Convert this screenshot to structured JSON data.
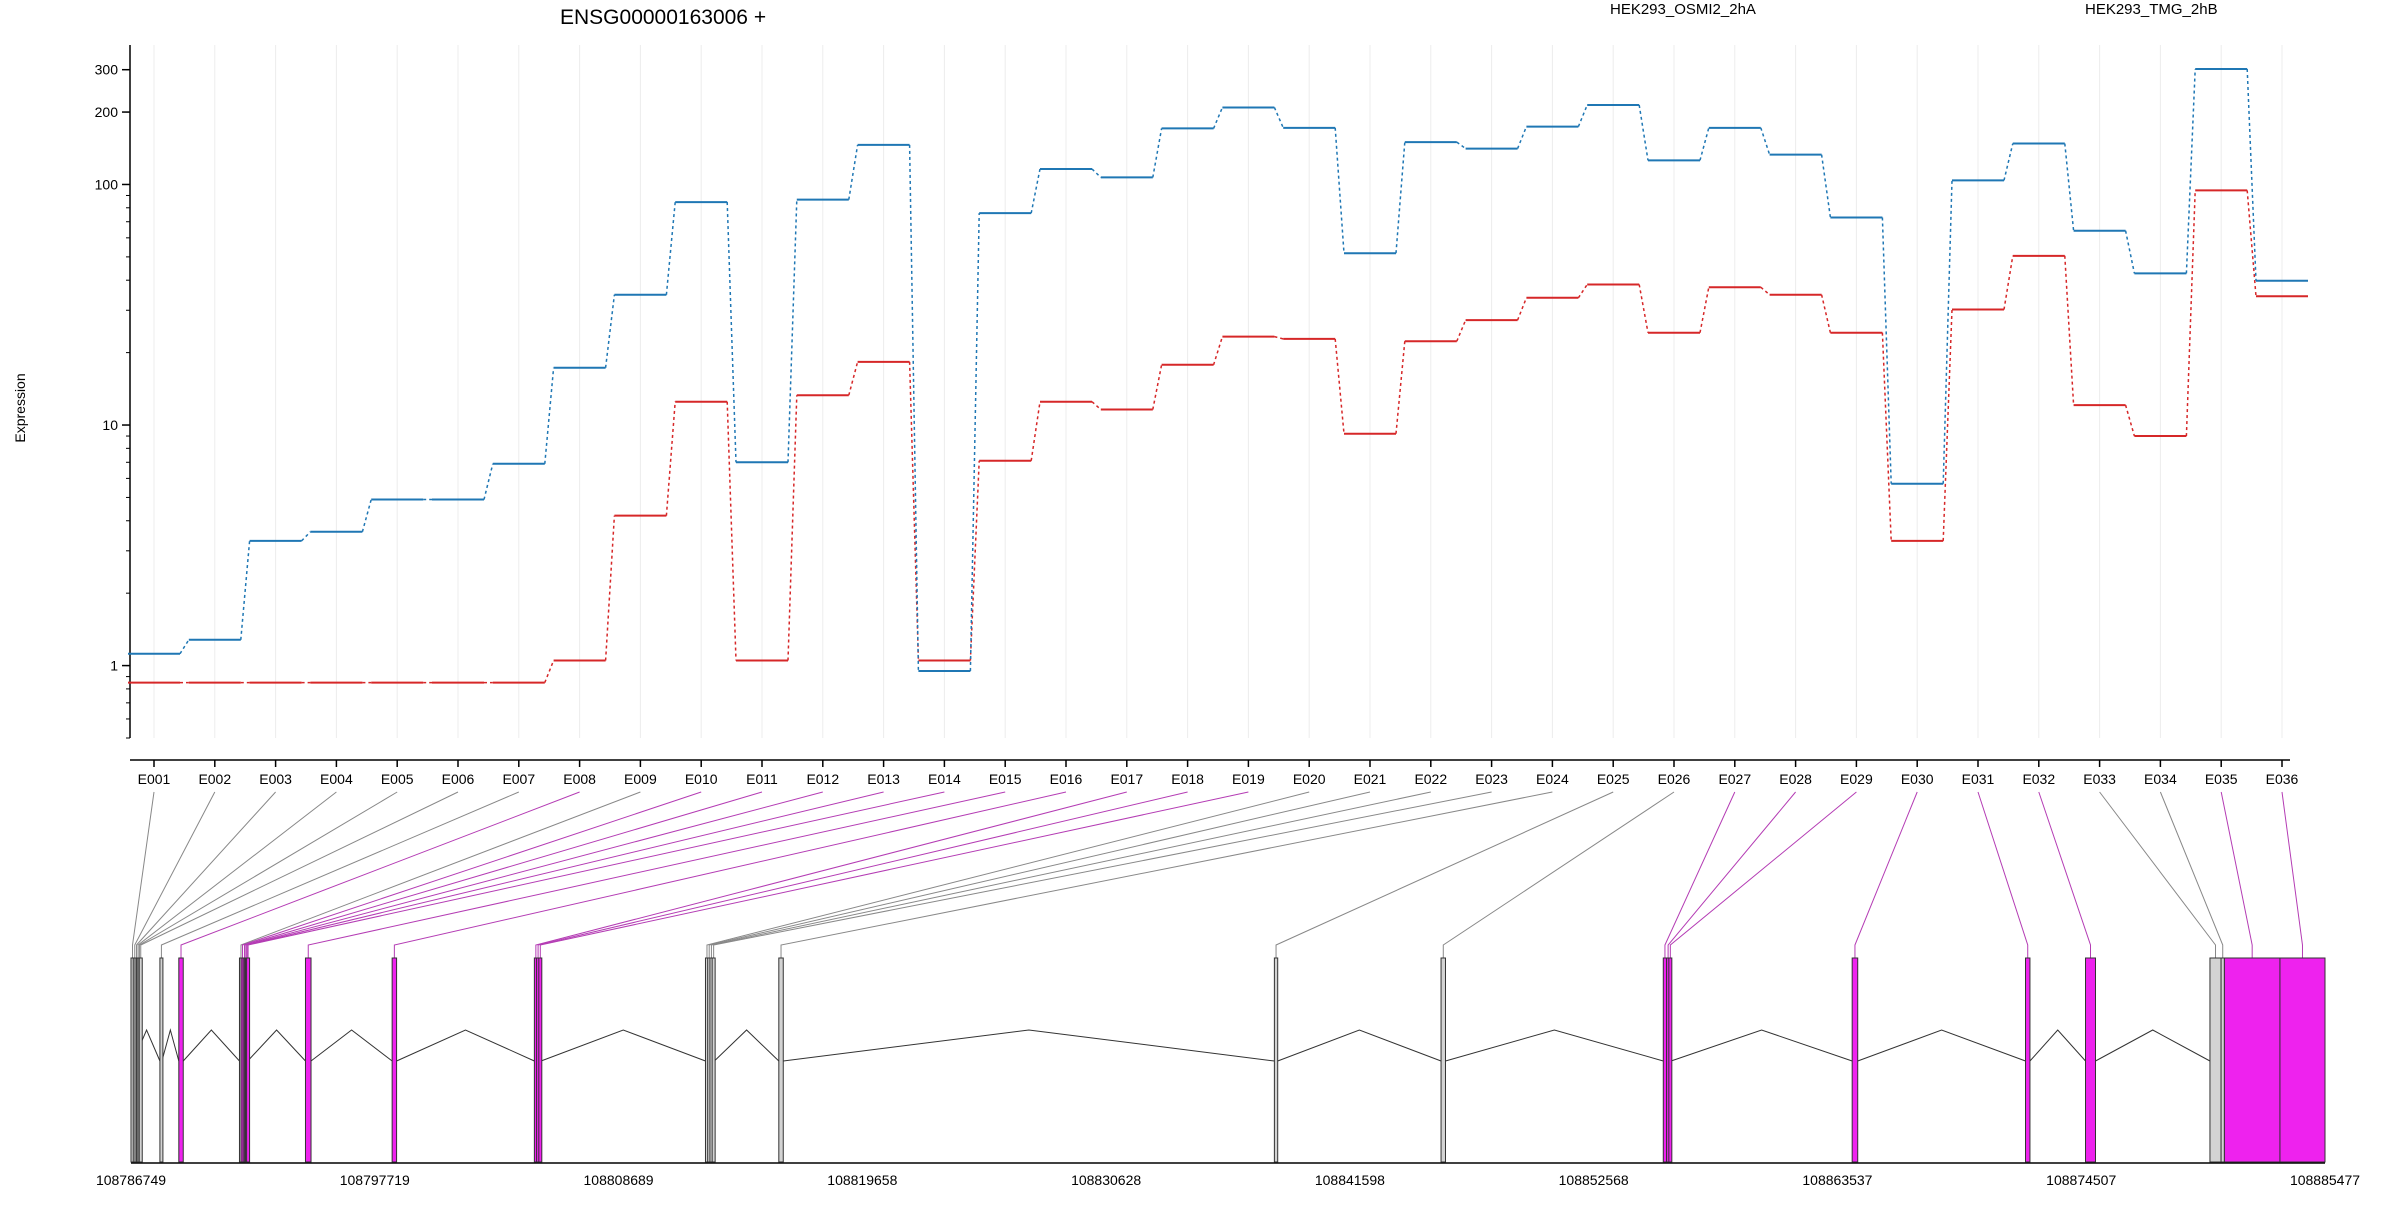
{
  "chart_data": [
    {
      "type": "line",
      "title": "ENSG00000163006 +",
      "ylabel": "Expression",
      "ylim": [
        0.5,
        380
      ],
      "yscale": "log",
      "y_ticks": [
        1,
        10,
        100,
        200,
        300
      ],
      "y_tick_labels": [
        "1",
        "10",
        "100",
        "200",
        "300"
      ],
      "grid": "vertical per exon",
      "legend": "top-right",
      "categories": [
        "E001",
        "E002",
        "E003",
        "E004",
        "E005",
        "E006",
        "E007",
        "E008",
        "E009",
        "E010",
        "E011",
        "E012",
        "E013",
        "E014",
        "E015",
        "E016",
        "E017",
        "E018",
        "E019",
        "E020",
        "E021",
        "E022",
        "E023",
        "E024",
        "E025",
        "E026",
        "E027",
        "E028",
        "E029",
        "E030",
        "E031",
        "E032",
        "E033",
        "E034",
        "E035",
        "E036"
      ],
      "series": [
        {
          "name": "HEK293_OSMI2_2hA",
          "color": "#d62728",
          "values": [
            0.85,
            0.85,
            0.85,
            0.85,
            0.85,
            0.85,
            0.85,
            1.05,
            4.2,
            12.5,
            1.05,
            13.3,
            18.3,
            1.05,
            7.1,
            12.5,
            11.6,
            17.8,
            23.3,
            22.8,
            9.2,
            22.3,
            27.3,
            33.8,
            38.4,
            24.2,
            37.4,
            34.8,
            24.2,
            3.3,
            30.2,
            50.5,
            12.1,
            9.0,
            94.5,
            34.3
          ]
        },
        {
          "name": "HEK293_TMG_2hB",
          "color": "#1f77b4",
          "values": [
            1.12,
            1.28,
            3.3,
            3.6,
            4.9,
            4.9,
            6.9,
            17.3,
            34.8,
            84.5,
            7.0,
            86.5,
            146,
            0.95,
            76.0,
            116,
            107,
            171,
            209,
            172,
            51.8,
            150,
            141,
            174,
            214,
            126,
            172,
            133,
            72.9,
            5.7,
            104,
            148,
            64.2,
            42.7,
            302,
            39.8
          ]
        }
      ]
    },
    {
      "type": "gene-model",
      "x_ticks": [
        108786749,
        108797719,
        108808689,
        108819658,
        108830628,
        108841598,
        108852568,
        108863537,
        108874507,
        108885477
      ],
      "x_tick_labels": [
        "108786749",
        "108797719",
        "108808689",
        "108819658",
        "108830628",
        "108841598",
        "108852568",
        "108863537",
        "108874507",
        "108885477"
      ],
      "exon_colors": {
        "significant": "#ee22ee",
        "normal": "#d3d3d3"
      },
      "exons": [
        {
          "id": "E001",
          "start": 108786749,
          "end": 108786850,
          "significant": false
        },
        {
          "id": "E002",
          "start": 108786850,
          "end": 108786930,
          "significant": false
        },
        {
          "id": "E003",
          "start": 108786930,
          "end": 108787000,
          "significant": false
        },
        {
          "id": "E004",
          "start": 108787000,
          "end": 108787060,
          "significant": false
        },
        {
          "id": "E005",
          "start": 108787060,
          "end": 108787120,
          "significant": false
        },
        {
          "id": "E006",
          "start": 108787120,
          "end": 108787180,
          "significant": false
        },
        {
          "id": "E007",
          "start": 108788050,
          "end": 108788140,
          "significant": false
        },
        {
          "id": "E008",
          "start": 108788900,
          "end": 108789100,
          "significant": true
        },
        {
          "id": "E009",
          "start": 108791630,
          "end": 108791700,
          "significant": false
        },
        {
          "id": "E010",
          "start": 108791700,
          "end": 108791790,
          "significant": true
        },
        {
          "id": "E011",
          "start": 108791790,
          "end": 108791850,
          "significant": true
        },
        {
          "id": "E012",
          "start": 108791850,
          "end": 108791900,
          "significant": true
        },
        {
          "id": "E013",
          "start": 108791900,
          "end": 108791950,
          "significant": true
        },
        {
          "id": "E014",
          "start": 108791950,
          "end": 108792000,
          "significant": true
        },
        {
          "id": "E015",
          "start": 108794600,
          "end": 108794850,
          "significant": true
        },
        {
          "id": "E016",
          "start": 108798500,
          "end": 108798700,
          "significant": true
        },
        {
          "id": "E017",
          "start": 108804900,
          "end": 108805000,
          "significant": true
        },
        {
          "id": "E018",
          "start": 108805000,
          "end": 108805100,
          "significant": true
        },
        {
          "id": "E019",
          "start": 108805100,
          "end": 108805200,
          "significant": true
        },
        {
          "id": "E020",
          "start": 108812600,
          "end": 108812700,
          "significant": false
        },
        {
          "id": "E021",
          "start": 108812700,
          "end": 108812800,
          "significant": false
        },
        {
          "id": "E022",
          "start": 108812800,
          "end": 108812900,
          "significant": false
        },
        {
          "id": "E023",
          "start": 108812900,
          "end": 108813000,
          "significant": false
        },
        {
          "id": "E024",
          "start": 108815900,
          "end": 108816100,
          "significant": false
        },
        {
          "id": "E025",
          "start": 108838200,
          "end": 108838350,
          "significant": false
        },
        {
          "id": "E026",
          "start": 108845700,
          "end": 108845900,
          "significant": false
        },
        {
          "id": "E027",
          "start": 108855700,
          "end": 108855850,
          "significant": true
        },
        {
          "id": "E028",
          "start": 108855850,
          "end": 108855950,
          "significant": true
        },
        {
          "id": "E029",
          "start": 108855950,
          "end": 108856050,
          "significant": true
        },
        {
          "id": "E030",
          "start": 108864200,
          "end": 108864450,
          "significant": true
        },
        {
          "id": "E031",
          "start": 108872000,
          "end": 108872200,
          "significant": true
        },
        {
          "id": "E032",
          "start": 108874700,
          "end": 108875150,
          "significant": true
        },
        {
          "id": "E033",
          "start": 108880300,
          "end": 108880800,
          "significant": false
        },
        {
          "id": "E034",
          "start": 108880800,
          "end": 108880950,
          "significant": false
        },
        {
          "id": "E035",
          "start": 108880950,
          "end": 108883450,
          "significant": true
        },
        {
          "id": "E036",
          "start": 108883450,
          "end": 108885477,
          "significant": true
        }
      ],
      "introns": [
        [
          108786850,
          108788050
        ],
        [
          108788140,
          108788900
        ],
        [
          108789100,
          108791630
        ],
        [
          108792000,
          108794600
        ],
        [
          108794850,
          108798500
        ],
        [
          108798700,
          108804900
        ],
        [
          108805200,
          108812600
        ],
        [
          108813000,
          108815900
        ],
        [
          108816100,
          108838200
        ],
        [
          108838350,
          108845700
        ],
        [
          108845900,
          108855700
        ],
        [
          108856050,
          108864200
        ],
        [
          108864450,
          108872000
        ],
        [
          108872200,
          108874700
        ],
        [
          108875150,
          108880300
        ]
      ]
    }
  ]
}
